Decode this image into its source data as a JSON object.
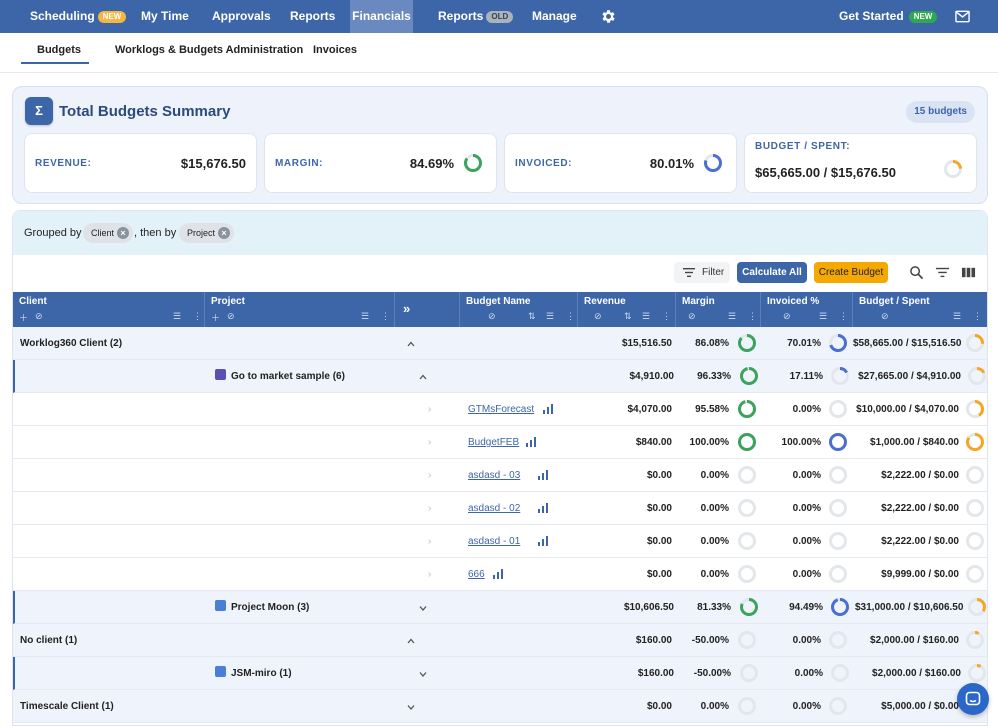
{
  "nav": {
    "scheduling": "Scheduling",
    "scheduling_badge": "NEW",
    "mytime": "My Time",
    "approvals": "Approvals",
    "reports": "Reports",
    "financials": "Financials",
    "reports_old": "Reports",
    "reports_old_badge": "OLD",
    "manage": "Manage",
    "get_started": "Get Started",
    "get_started_badge": "NEW"
  },
  "tabs": {
    "budgets": "Budgets",
    "worklogs": "Worklogs & Budgets Administration",
    "invoices": "Invoices"
  },
  "summary": {
    "title": "Total Budgets Summary",
    "count": "15 budgets",
    "revenue_label": "REVENUE:",
    "revenue_value": "$15,676.50",
    "margin_label": "MARGIN:",
    "margin_value": "84.69%",
    "invoiced_label": "INVOICED:",
    "invoiced_value": "80.01%",
    "budget_label": "BUDGET / SPENT:",
    "budget_value": "$65,665.00 / $15,676.50"
  },
  "grouping": {
    "prefix": "Grouped by",
    "first": "Client",
    "middle": ", then by",
    "second": "Project"
  },
  "toolbar": {
    "filter": "Filter",
    "calculate": "Calculate All",
    "create": "Create Budget"
  },
  "columns": {
    "client": "Client",
    "project": "Project",
    "budget_name": "Budget Name",
    "revenue": "Revenue",
    "margin": "Margin",
    "invoiced": "Invoiced %",
    "budget_spent": "Budget / Spent"
  },
  "colors": {
    "nav": "#3d66a8",
    "margin_ring": "#3aa35c",
    "invoiced_ring": "#4b6fd1",
    "budget_ring": "#f5a623"
  },
  "rows": [
    {
      "label": "Worklog360 Client (2)",
      "revenue": "$15,516.50",
      "margin": "86.08%",
      "invoiced": "70.01%",
      "budget": "$58,665.00 / $15,516.50"
    },
    {
      "label": "Go to market sample (6)",
      "revenue": "$4,910.00",
      "margin": "96.33%",
      "invoiced": "17.11%",
      "budget": "$27,665.00 / $4,910.00"
    },
    {
      "label": "GTMsForecast",
      "revenue": "$4,070.00",
      "margin": "95.58%",
      "invoiced": "0.00%",
      "budget": "$10,000.00 / $4,070.00"
    },
    {
      "label": "BudgetFEB",
      "revenue": "$840.00",
      "margin": "100.00%",
      "invoiced": "100.00%",
      "budget": "$1,000.00 / $840.00"
    },
    {
      "label": "asdasd - 03",
      "revenue": "$0.00",
      "margin": "0.00%",
      "invoiced": "0.00%",
      "budget": "$2,222.00 / $0.00"
    },
    {
      "label": "asdasd - 02",
      "revenue": "$0.00",
      "margin": "0.00%",
      "invoiced": "0.00%",
      "budget": "$2,222.00 / $0.00"
    },
    {
      "label": "asdasd - 01",
      "revenue": "$0.00",
      "margin": "0.00%",
      "invoiced": "0.00%",
      "budget": "$2,222.00 / $0.00"
    },
    {
      "label": "666",
      "revenue": "$0.00",
      "margin": "0.00%",
      "invoiced": "0.00%",
      "budget": "$9,999.00 / $0.00"
    },
    {
      "label": "Project Moon (3)",
      "revenue": "$10,606.50",
      "margin": "81.33%",
      "invoiced": "94.49%",
      "budget": "$31,000.00 / $10,606.50"
    },
    {
      "label": "No client (1)",
      "revenue": "$160.00",
      "margin": "-50.00%",
      "invoiced": "0.00%",
      "budget": "$2,000.00 / $160.00"
    },
    {
      "label": "JSM-miro (1)",
      "revenue": "$160.00",
      "margin": "-50.00%",
      "invoiced": "0.00%",
      "budget": "$2,000.00 / $160.00"
    },
    {
      "label": "Timescale Client (1)",
      "revenue": "$0.00",
      "margin": "0.00%",
      "invoiced": "0.00%",
      "budget": "$5,000.00 / $0.00"
    }
  ]
}
